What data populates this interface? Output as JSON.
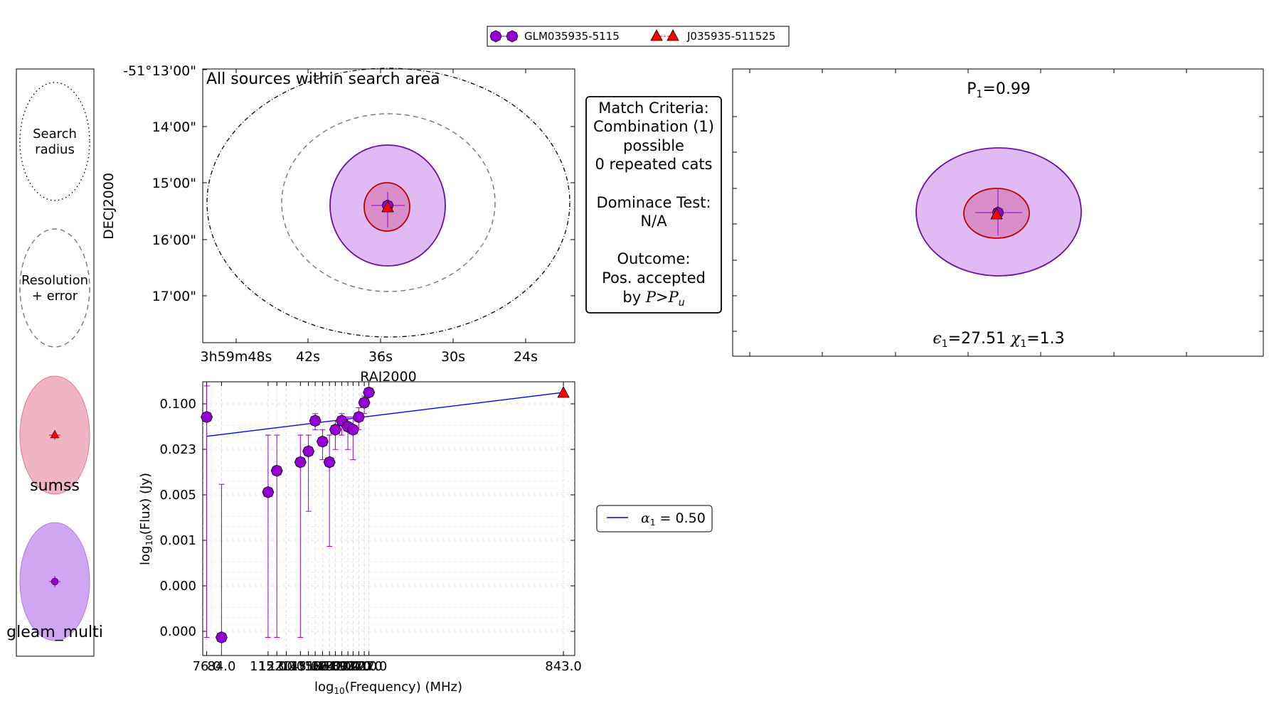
{
  "legend_top": {
    "entries": [
      {
        "label": "GLM035935-5115",
        "marker": "circle",
        "color": "#9400d3"
      },
      {
        "label": "J035935-511525",
        "marker": "triangle",
        "color": "#ff0000"
      }
    ]
  },
  "key_panel": {
    "items": [
      {
        "label": "Search\nradius",
        "style": "dotted-ellipse"
      },
      {
        "label": "Resolution\n+ error",
        "style": "dashed-ellipse"
      },
      {
        "label": "sumss",
        "fill": "#f0a8b8",
        "edge": "#e87a8a",
        "marker": "triangle",
        "marker_color": "#ff0000"
      },
      {
        "label": "gleam_multi",
        "fill": "#c89cf0",
        "edge": "#b27ae8",
        "marker": "circle",
        "marker_color": "#9400d3"
      }
    ]
  },
  "sky_panel": {
    "title": "All sources within search area",
    "xlabel": "RAJ2000",
    "ylabel": "DECJ2000",
    "xticks": [
      "3h59m48s",
      "42s",
      "36s",
      "30s",
      "24s"
    ],
    "yticks": [
      "-51°13'00\"",
      "14'00\"",
      "15'00\"",
      "16'00\"",
      "17'00\""
    ]
  },
  "criteria_box": {
    "lines": [
      "Match Criteria:",
      "Combination (1)",
      "possible",
      "0 repeated cats",
      "",
      "Dominace Test:",
      "N/A",
      "",
      "Outcome:",
      "Pos. accepted"
    ],
    "last_prefix": "by ",
    "last_P": "P",
    "last_gt": ">",
    "last_Pu": "P",
    "last_u": "u"
  },
  "zoom_panel": {
    "prob_label": "P",
    "prob_sub": "1",
    "prob_value": "=0.99",
    "eps_sym": "ϵ",
    "eps_sub": "1",
    "eps_value": "=27.51",
    "chi_sym": "χ",
    "chi_sub": "1",
    "chi_value": "=1.3"
  },
  "sed_legend": {
    "alpha_sym": "α",
    "alpha_sub": "1",
    "alpha_value": " = 0.50",
    "line_color": "#0000ff"
  },
  "chart_data": {
    "type": "scatter",
    "xscale": "log",
    "yscale": "log",
    "xlabel_prefix": "log",
    "xlabel_sub": "10",
    "xlabel_rest": "(Frequency) (MHz)",
    "ylabel_prefix": "log",
    "ylabel_sub": "10",
    "ylabel_rest": "(Flux) (Jy)",
    "xlim": [
      74,
      910
    ],
    "ytick_labels": [
      "0.100",
      "0.023",
      "0.005",
      "0.001",
      "0.000",
      "0.000"
    ],
    "xtick_labels": [
      "76.0",
      "84.0",
      "115.0",
      "122.0",
      "130.0",
      "143.0",
      "151.0",
      "158.0",
      "166.0",
      "174.0",
      "181.0",
      "189.0",
      "197.0",
      "204.0",
      "212.0",
      "220.0",
      "227.0",
      "843.0"
    ],
    "xtick_values": [
      76,
      84,
      115,
      122,
      130,
      143,
      151,
      158,
      166,
      174,
      181,
      189,
      197,
      204,
      212,
      220,
      227,
      843
    ],
    "series": [
      {
        "name": "GLM035935-5115",
        "marker": "circle",
        "color": "#9400d3",
        "x": [
          76,
          84,
          115,
          122,
          143,
          151,
          158,
          166,
          174,
          181,
          189,
          197,
          204,
          212,
          220,
          227
        ],
        "y": [
          0.05,
          0.0001,
          0.006,
          0.011,
          0.014,
          0.019,
          0.045,
          0.025,
          0.014,
          0.035,
          0.045,
          0.038,
          0.035,
          0.05,
          0.075,
          0.1
        ],
        "yerr_low": [
          0.0001,
          2e-05,
          0.0001,
          0.0001,
          0.0001,
          0.0035,
          0.035,
          0.015,
          0.0013,
          0.02,
          0.03,
          0.02,
          0.015,
          0.035,
          0.055,
          0.1
        ],
        "yerr_high": [
          0.12,
          0.0075,
          0.03,
          0.03,
          0.03,
          0.03,
          0.055,
          0.035,
          0.03,
          0.045,
          0.055,
          0.05,
          0.05,
          0.065,
          0.09,
          0.1
        ]
      },
      {
        "name": "J035935-511525",
        "marker": "triangle",
        "color": "#ff0000",
        "x": [
          843
        ],
        "y": [
          0.1
        ]
      }
    ],
    "fit_line": {
      "x": [
        76,
        843
      ],
      "y": [
        0.029,
        0.1
      ],
      "color": "#0000ff"
    }
  }
}
